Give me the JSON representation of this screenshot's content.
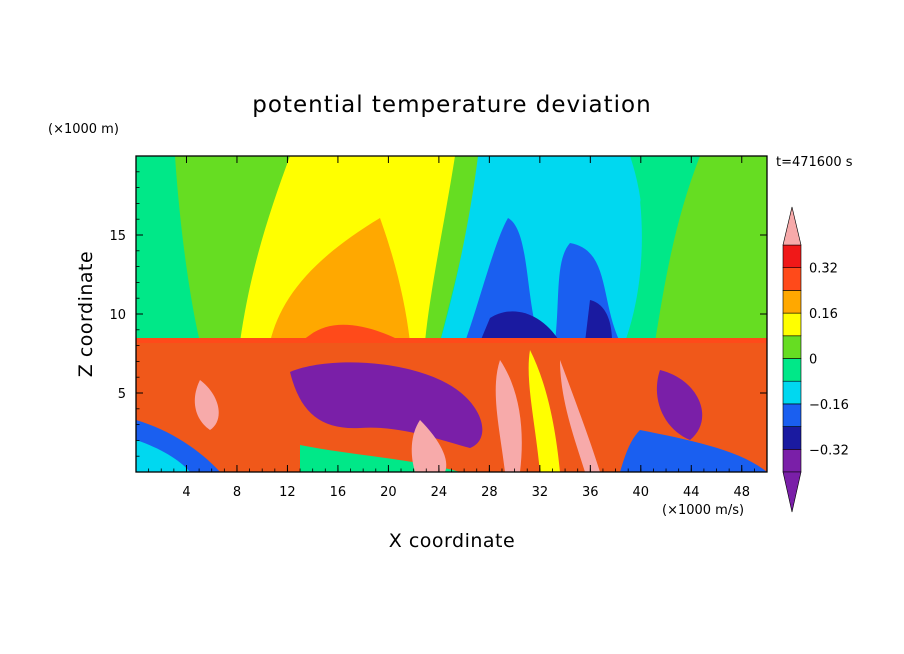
{
  "chart_data": {
    "type": "heatmap",
    "title": "potential temperature deviation",
    "xlabel": "X coordinate",
    "ylabel": "Z coordinate",
    "x_units": "(×1000 m/s)",
    "y_units": "(×1000 m)",
    "time_label": "t=471600 s",
    "xlim": [
      0,
      50
    ],
    "ylim": [
      0,
      20
    ],
    "x_ticks": [
      4,
      8,
      12,
      16,
      20,
      24,
      28,
      32,
      36,
      40,
      44,
      48
    ],
    "y_ticks": [
      5,
      10,
      15
    ],
    "colorbar": {
      "levels": [
        -0.4,
        -0.32,
        -0.24,
        -0.16,
        -0.08,
        0,
        0.08,
        0.16,
        0.24,
        0.32,
        0.4
      ],
      "labels": [
        "0.32",
        "0.16",
        "0",
        "−0.16",
        "−0.32"
      ],
      "label_values": [
        0.32,
        0.16,
        0,
        -0.16,
        -0.32
      ],
      "extend": "both"
    },
    "colors": {
      "over": "#f7aaaa",
      "bands": [
        "#7a1fa8",
        "#1a1aa0",
        "#1a5ff0",
        "#00d8f0",
        "#00e888",
        "#66dd22",
        "#ffff00",
        "#ffa800",
        "#ff4a1a",
        "#f01818"
      ],
      "under": "#7a1fa8"
    }
  }
}
